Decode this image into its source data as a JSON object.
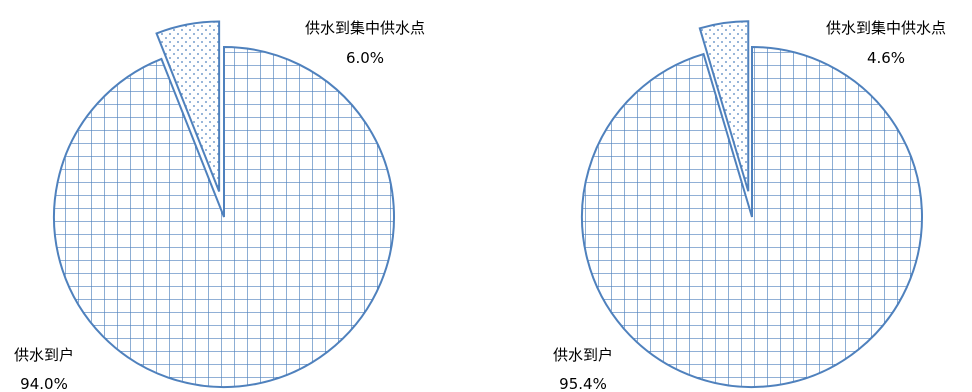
{
  "chart_data": [
    {
      "type": "pie",
      "series": [
        {
          "values": [
            94.0,
            6.0
          ]
        }
      ],
      "slices": [
        {
          "label": "供水到户",
          "value": 94.0,
          "value_text": "94.0%",
          "pattern": "grid",
          "exploded": false
        },
        {
          "label": "供水到集中供水点",
          "value": 6.0,
          "value_text": "6.0%",
          "pattern": "dots",
          "exploded": true
        }
      ]
    },
    {
      "type": "pie",
      "series": [
        {
          "values": [
            95.4,
            4.6
          ]
        }
      ],
      "slices": [
        {
          "label": "供水到户",
          "value": 95.4,
          "value_text": "95.4%",
          "pattern": "grid",
          "exploded": false
        },
        {
          "label": "供水到集中供水点",
          "value": 4.6,
          "value_text": "4.6%",
          "pattern": "dots",
          "exploded": true
        }
      ]
    }
  ],
  "colors": {
    "stroke": "#4f81bd",
    "fill": "#ffffff",
    "text": "#000000"
  }
}
